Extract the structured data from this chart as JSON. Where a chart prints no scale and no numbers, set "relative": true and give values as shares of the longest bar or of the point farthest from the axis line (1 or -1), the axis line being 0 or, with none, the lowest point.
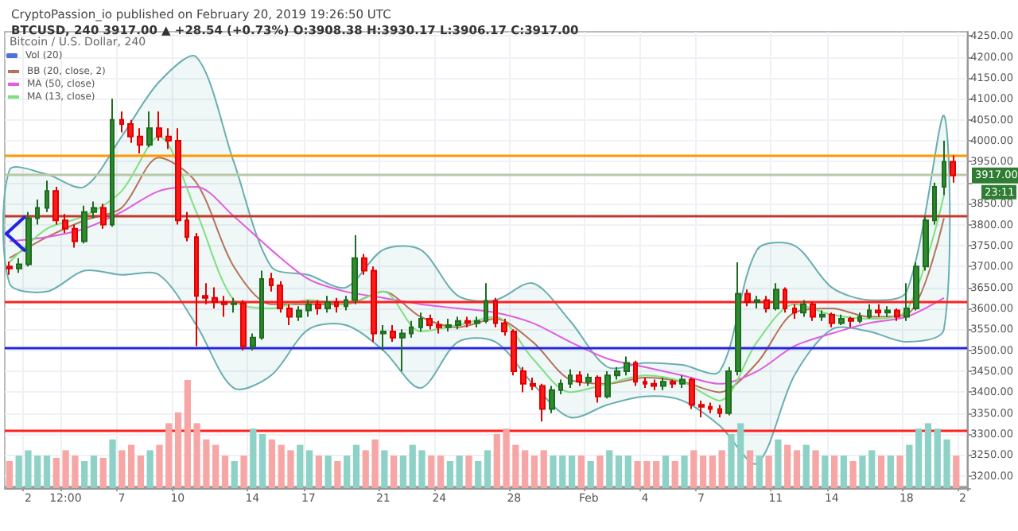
{
  "chart_data": [
    {
      "type": "candlestick",
      "title": "CryptoPassion_io published on February 20, 2019 19:26:50 UTC",
      "subtitle": "BTCUSD, 240 3917.00 ▲ +28.54 (+0.73%) O:3908.38 H:3930.17 L:3906.17 C:3917.00",
      "annotations": [
        "Bitcoin / U.S. Dollar, 240",
        {
          "text": "3917.00",
          "y": 3917
        },
        "23:11"
      ],
      "categories": [
        null,
        null,
        "2",
        null,
        null,
        null,
        "12:00",
        null,
        null,
        null,
        null,
        null,
        "7",
        null,
        null,
        null,
        null,
        null,
        "10",
        null,
        null,
        null,
        null,
        null,
        null,
        null,
        "14",
        null,
        null,
        null,
        null,
        null,
        "17",
        null,
        null,
        null,
        null,
        null,
        null,
        null,
        "21",
        null,
        null,
        null,
        null,
        null,
        "24",
        null,
        null,
        null,
        null,
        null,
        null,
        null,
        "28",
        null,
        null,
        null,
        null,
        null,
        null,
        null,
        "Feb",
        null,
        null,
        null,
        null,
        null,
        "4",
        null,
        null,
        null,
        null,
        null,
        "7",
        null,
        null,
        null,
        null,
        null,
        null,
        null,
        "11",
        null,
        null,
        null,
        null,
        null,
        "14",
        null,
        null,
        null,
        null,
        null,
        null,
        null,
        "18",
        null,
        null,
        null,
        null,
        null,
        "2"
      ],
      "ohlc": [
        [
          3700,
          3712,
          3680,
          3695
        ],
        [
          3695,
          3720,
          3685,
          3705
        ],
        [
          3705,
          3830,
          3700,
          3815
        ],
        [
          3815,
          3860,
          3800,
          3840
        ],
        [
          3840,
          3905,
          3830,
          3880
        ],
        [
          3880,
          3890,
          3800,
          3810
        ],
        [
          3810,
          3825,
          3780,
          3790
        ],
        [
          3790,
          3800,
          3745,
          3760
        ],
        [
          3760,
          3845,
          3755,
          3830
        ],
        [
          3830,
          3855,
          3815,
          3840
        ],
        [
          3840,
          3850,
          3790,
          3800
        ],
        [
          3800,
          4100,
          3795,
          4050
        ],
        [
          4050,
          4070,
          4020,
          4040
        ],
        [
          4040,
          4050,
          3995,
          4010
        ],
        [
          4010,
          4030,
          3970,
          3990
        ],
        [
          3990,
          4070,
          3985,
          4030
        ],
        [
          4030,
          4070,
          4000,
          4010
        ],
        [
          4010,
          4030,
          3980,
          4000
        ],
        [
          4000,
          4030,
          3800,
          3810
        ],
        [
          3810,
          3830,
          3760,
          3770
        ],
        [
          3770,
          3780,
          3510,
          3630
        ],
        [
          3630,
          3660,
          3610,
          3625
        ],
        [
          3625,
          3650,
          3600,
          3615
        ],
        [
          3615,
          3630,
          3580,
          3610
        ],
        [
          3610,
          3625,
          3590,
          3612
        ],
        [
          3612,
          3620,
          3500,
          3510
        ],
        [
          3510,
          3540,
          3500,
          3530
        ],
        [
          3530,
          3690,
          3525,
          3670
        ],
        [
          3670,
          3685,
          3640,
          3655
        ],
        [
          3655,
          3665,
          3590,
          3600
        ],
        [
          3600,
          3610,
          3560,
          3580
        ],
        [
          3580,
          3605,
          3570,
          3595
        ],
        [
          3595,
          3620,
          3580,
          3610
        ],
        [
          3610,
          3620,
          3585,
          3600
        ],
        [
          3600,
          3630,
          3590,
          3615
        ],
        [
          3615,
          3625,
          3590,
          3605
        ],
        [
          3605,
          3630,
          3595,
          3620
        ],
        [
          3620,
          3775,
          3610,
          3720
        ],
        [
          3720,
          3730,
          3680,
          3690
        ],
        [
          3690,
          3700,
          3520,
          3540
        ],
        [
          3540,
          3560,
          3500,
          3545
        ],
        [
          3545,
          3560,
          3520,
          3530
        ],
        [
          3530,
          3550,
          3450,
          3540
        ],
        [
          3540,
          3570,
          3530,
          3555
        ],
        [
          3555,
          3590,
          3545,
          3575
        ],
        [
          3575,
          3585,
          3550,
          3560
        ],
        [
          3560,
          3570,
          3540,
          3555
        ],
        [
          3555,
          3575,
          3545,
          3560
        ],
        [
          3560,
          3580,
          3550,
          3570
        ],
        [
          3570,
          3580,
          3555,
          3565
        ],
        [
          3565,
          3580,
          3555,
          3570
        ],
        [
          3570,
          3660,
          3565,
          3618
        ],
        [
          3618,
          3625,
          3555,
          3565
        ],
        [
          3565,
          3575,
          3535,
          3545
        ],
        [
          3545,
          3550,
          3440,
          3450
        ],
        [
          3450,
          3460,
          3400,
          3420
        ],
        [
          3420,
          3435,
          3405,
          3415
        ],
        [
          3415,
          3420,
          3330,
          3360
        ],
        [
          3360,
          3415,
          3350,
          3405
        ],
        [
          3405,
          3430,
          3395,
          3420
        ],
        [
          3420,
          3455,
          3410,
          3440
        ],
        [
          3440,
          3450,
          3415,
          3425
        ],
        [
          3425,
          3445,
          3415,
          3435
        ],
        [
          3435,
          3440,
          3375,
          3390
        ],
        [
          3390,
          3450,
          3385,
          3440
        ],
        [
          3440,
          3460,
          3430,
          3450
        ],
        [
          3450,
          3485,
          3440,
          3470
        ],
        [
          3470,
          3475,
          3415,
          3425
        ],
        [
          3425,
          3435,
          3410,
          3420
        ],
        [
          3420,
          3430,
          3405,
          3415
        ],
        [
          3415,
          3435,
          3405,
          3425
        ],
        [
          3425,
          3430,
          3410,
          3420
        ],
        [
          3420,
          3440,
          3410,
          3430
        ],
        [
          3430,
          3435,
          3360,
          3370
        ],
        [
          3370,
          3380,
          3340,
          3365
        ],
        [
          3365,
          3375,
          3350,
          3360
        ],
        [
          3360,
          3370,
          3340,
          3350
        ],
        [
          3350,
          3460,
          3345,
          3450
        ],
        [
          3450,
          3710,
          3440,
          3635
        ],
        [
          3635,
          3645,
          3605,
          3615
        ],
        [
          3615,
          3630,
          3600,
          3620
        ],
        [
          3620,
          3630,
          3590,
          3600
        ],
        [
          3600,
          3660,
          3595,
          3645
        ],
        [
          3645,
          3650,
          3590,
          3600
        ],
        [
          3600,
          3610,
          3575,
          3590
        ],
        [
          3590,
          3620,
          3580,
          3610
        ],
        [
          3610,
          3615,
          3570,
          3580
        ],
        [
          3580,
          3595,
          3570,
          3585
        ],
        [
          3585,
          3590,
          3555,
          3565
        ],
        [
          3565,
          3585,
          3560,
          3575
        ],
        [
          3575,
          3580,
          3555,
          3570
        ],
        [
          3570,
          3590,
          3565,
          3580
        ],
        [
          3580,
          3610,
          3575,
          3595
        ],
        [
          3595,
          3610,
          3580,
          3590
        ],
        [
          3590,
          3605,
          3580,
          3595
        ],
        [
          3595,
          3600,
          3570,
          3580
        ],
        [
          3580,
          3660,
          3570,
          3600
        ],
        [
          3600,
          3710,
          3595,
          3700
        ],
        [
          3700,
          3820,
          3690,
          3810
        ],
        [
          3810,
          3900,
          3800,
          3890
        ],
        [
          3890,
          4000,
          3870,
          3950
        ],
        [
          3950,
          3965,
          3900,
          3917
        ],
        null
      ],
      "series": [
        {
          "name": "BB (20, close, 2)",
          "type": "line",
          "color": "#b5735a",
          "values": [
            3720,
            null,
            null,
            null,
            3770,
            null,
            null,
            null,
            3810,
            null,
            null,
            null,
            3840,
            null,
            null,
            null,
            3960,
            null,
            null,
            null,
            3900,
            null,
            null,
            null,
            3700,
            null,
            null,
            null,
            3610,
            null,
            null,
            null,
            3610,
            null,
            null,
            null,
            3610,
            null,
            null,
            null,
            3640,
            null,
            null,
            null,
            3580,
            null,
            null,
            null,
            3555,
            null,
            null,
            null,
            3575,
            null,
            null,
            null,
            3520,
            null,
            null,
            null,
            3430,
            null,
            null,
            null,
            3420,
            null,
            null,
            null,
            3435,
            null,
            null,
            null,
            3425,
            null,
            null,
            null,
            3400,
            null,
            null,
            null,
            3470,
            null,
            null,
            null,
            3590,
            null,
            null,
            null,
            3600,
            null,
            null,
            null,
            3580,
            null,
            null,
            null,
            3585,
            null,
            null,
            null,
            3815,
            null,
            null
          ],
          "lower": [
            3660,
            null,
            null,
            null,
            3640,
            null,
            null,
            null,
            3690,
            null,
            null,
            null,
            3680,
            null,
            null,
            null,
            3680,
            null,
            null,
            null,
            3560,
            null,
            null,
            null,
            3410,
            null,
            null,
            null,
            3440,
            null,
            null,
            null,
            3550,
            null,
            null,
            null,
            3560,
            null,
            null,
            null,
            3500,
            null,
            null,
            null,
            3410,
            null,
            null,
            null,
            3520,
            null,
            null,
            null,
            3520,
            null,
            null,
            null,
            3420,
            null,
            null,
            null,
            3340,
            null,
            null,
            null,
            3370,
            null,
            null,
            null,
            3390,
            null,
            null,
            null,
            3380,
            null,
            null,
            null,
            3320,
            null,
            null,
            null,
            3230,
            null,
            null,
            null,
            3440,
            null,
            null,
            null,
            3550,
            null,
            null,
            null,
            3545,
            null,
            null,
            null,
            3520,
            null,
            null,
            null,
            3550,
            null,
            null
          ],
          "upper": [
            3930,
            null,
            null,
            null,
            3920,
            null,
            null,
            null,
            3890,
            null,
            null,
            null,
            4010,
            null,
            null,
            null,
            4140,
            null,
            null,
            null,
            4200,
            null,
            null,
            null,
            3950,
            null,
            null,
            null,
            3700,
            null,
            null,
            null,
            3680,
            null,
            null,
            null,
            3650,
            null,
            null,
            null,
            3740,
            null,
            null,
            null,
            3740,
            null,
            null,
            null,
            3630,
            null,
            null,
            null,
            3620,
            null,
            null,
            null,
            3660,
            null,
            null,
            null,
            3570,
            null,
            null,
            null,
            3460,
            null,
            null,
            null,
            3470,
            null,
            null,
            null,
            3465,
            null,
            null,
            null,
            3450,
            null,
            null,
            null,
            3740,
            null,
            null,
            null,
            3750,
            null,
            null,
            null,
            3650,
            null,
            null,
            null,
            3620,
            null,
            null,
            null,
            3640,
            null,
            null,
            null,
            4060,
            null,
            null
          ]
        },
        {
          "name": "MA (50, close)",
          "type": "line",
          "color": "#e05ce0",
          "values": [
            3760,
            null,
            null,
            null,
            3770,
            null,
            null,
            null,
            3790,
            null,
            null,
            null,
            3830,
            null,
            null,
            null,
            3880,
            null,
            null,
            null,
            3890,
            null,
            null,
            null,
            3820,
            null,
            null,
            null,
            3740,
            null,
            null,
            null,
            3670,
            null,
            null,
            null,
            3640,
            null,
            null,
            null,
            3625,
            null,
            null,
            null,
            3610,
            null,
            null,
            null,
            3600,
            null,
            null,
            null,
            3590,
            null,
            null,
            null,
            3565,
            null,
            null,
            null,
            3520,
            null,
            null,
            null,
            3480,
            null,
            null,
            null,
            3460,
            null,
            null,
            null,
            3440,
            null,
            null,
            null,
            3420,
            null,
            null,
            null,
            3450,
            null,
            null,
            null,
            3510,
            null,
            null,
            null,
            3540,
            null,
            null,
            null,
            3565,
            null,
            null,
            null,
            3580,
            null,
            null,
            null,
            3625,
            null,
            null
          ]
        },
        {
          "name": "MA (13, close)",
          "type": "line",
          "color": "#7ee07e",
          "values": [
            3710,
            null,
            null,
            null,
            3790,
            null,
            null,
            null,
            3820,
            null,
            null,
            null,
            3880,
            null,
            null,
            null,
            4010,
            null,
            null,
            null,
            3830,
            null,
            null,
            null,
            3620,
            null,
            null,
            null,
            3600,
            null,
            null,
            null,
            3620,
            null,
            null,
            null,
            3610,
            null,
            null,
            null,
            3640,
            null,
            null,
            null,
            3545,
            null,
            null,
            null,
            3560,
            null,
            null,
            null,
            3580,
            null,
            null,
            null,
            3480,
            null,
            null,
            null,
            3400,
            null,
            null,
            null,
            3420,
            null,
            null,
            null,
            3440,
            null,
            null,
            null,
            3425,
            null,
            null,
            null,
            3380,
            null,
            null,
            null,
            3520,
            null,
            null,
            null,
            3610,
            null,
            null,
            null,
            3585,
            null,
            null,
            null,
            3575,
            null,
            null,
            null,
            3595,
            null,
            null,
            null,
            3870,
            null,
            null
          ]
        }
      ],
      "ylim": [
        3175,
        4260
      ],
      "yticks": [
        {
          "value": 3200,
          "label": "3200.00"
        },
        {
          "value": 3250,
          "label": "3250.00"
        },
        {
          "value": 3300,
          "label": "3300.00"
        },
        {
          "value": 3350,
          "label": "3350.00"
        },
        {
          "value": 3400,
          "label": "3400.00"
        },
        {
          "value": 3450,
          "label": "3450.00"
        },
        {
          "value": 3500,
          "label": "3500.00"
        },
        {
          "value": 3550,
          "label": "3550.00"
        },
        {
          "value": 3600,
          "label": "3600.00"
        },
        {
          "value": 3650,
          "label": "3650.00"
        },
        {
          "value": 3700,
          "label": "3700.00"
        },
        {
          "value": 3750,
          "label": "3750.00"
        },
        {
          "value": 3800,
          "label": "3800.00"
        },
        {
          "value": 3850,
          "label": "3850.00"
        },
        {
          "value": 3900,
          "label": null
        },
        {
          "value": 3950,
          "label": "3950.00"
        },
        {
          "value": 4000,
          "label": "4000.00"
        },
        {
          "value": 4050,
          "label": "4050.00"
        },
        {
          "value": 4100,
          "label": "4100.00"
        },
        {
          "value": 4150,
          "label": "4150.00"
        },
        {
          "value": 4200,
          "label": "4200.00"
        },
        {
          "value": 4250,
          "label": "4250.00"
        }
      ],
      "ref_lines": [
        {
          "axis": "y",
          "value": 3966,
          "color": "#ff9800"
        },
        {
          "axis": "y",
          "value": 3918,
          "color": "#b8c8a8"
        },
        {
          "axis": "y",
          "value": 3819,
          "color": "#c0392b"
        },
        {
          "axis": "y",
          "value": 3616,
          "color": "#ff2020"
        },
        {
          "axis": "y",
          "value": 3505,
          "color": "#2424e0"
        },
        {
          "axis": "y",
          "value": 3308,
          "color": "#ff2020"
        }
      ],
      "grid": true,
      "legend": "top left"
    },
    {
      "type": "bar",
      "relative": true,
      "legend": "top left",
      "categories": [
        null,
        null,
        null,
        null,
        null,
        null,
        null,
        null,
        null,
        null,
        null,
        null,
        null,
        null,
        null,
        null,
        null,
        null,
        null,
        null,
        null,
        null,
        null,
        null,
        null,
        null,
        null,
        null,
        null,
        null,
        null,
        null,
        null,
        null,
        null,
        null,
        null,
        null,
        null,
        null,
        null,
        null,
        null,
        null,
        null,
        null,
        null,
        null,
        null,
        null,
        null,
        null,
        null,
        null,
        null,
        null,
        null,
        null,
        null,
        null,
        null,
        null,
        null,
        null,
        null,
        null,
        null,
        null,
        null,
        null,
        null,
        null,
        null,
        null,
        null,
        null,
        null,
        null,
        null,
        null,
        null,
        null,
        null,
        null,
        null,
        null,
        null,
        null,
        null,
        null,
        null,
        null,
        null,
        null,
        null,
        null,
        null,
        null,
        null,
        null,
        null,
        null,
        null
      ],
      "series": [
        {
          "name": "Vol (20)",
          "values": [
            0.25,
            0.3,
            0.35,
            0.3,
            0.3,
            0.28,
            0.35,
            0.3,
            0.25,
            0.3,
            0.28,
            0.45,
            0.35,
            0.4,
            0.3,
            0.35,
            0.4,
            0.6,
            0.7,
            1.0,
            0.6,
            0.45,
            0.4,
            0.3,
            0.25,
            0.3,
            0.55,
            0.5,
            0.45,
            0.4,
            0.35,
            0.4,
            0.35,
            0.3,
            0.3,
            0.25,
            0.3,
            0.4,
            0.35,
            0.45,
            0.35,
            0.3,
            0.3,
            0.4,
            0.35,
            0.3,
            0.3,
            0.25,
            0.3,
            0.3,
            0.25,
            0.35,
            0.5,
            0.55,
            0.4,
            0.35,
            0.3,
            0.35,
            0.3,
            0.3,
            0.3,
            0.3,
            0.25,
            0.3,
            0.35,
            0.3,
            0.3,
            0.25,
            0.25,
            0.25,
            0.3,
            0.25,
            0.3,
            0.35,
            0.3,
            0.3,
            0.35,
            0.5,
            0.6,
            0.35,
            0.3,
            0.3,
            0.45,
            0.4,
            0.35,
            0.4,
            0.35,
            0.3,
            0.3,
            0.3,
            0.25,
            0.3,
            0.35,
            0.3,
            0.3,
            0.3,
            0.4,
            0.55,
            0.6,
            0.55,
            0.45,
            0.3,
            null
          ],
          "colors": [
            "#f6a6a4",
            "#8ed1c6",
            "#8ed1c6",
            "#8ed1c6",
            "#8ed1c6",
            "#f6a6a4",
            "#f6a6a4",
            "#f6a6a4",
            "#8ed1c6",
            "#8ed1c6",
            "#f6a6a4",
            "#8ed1c6",
            "#f6a6a4",
            "#f6a6a4",
            "#f6a6a4",
            "#8ed1c6",
            "#f6a6a4",
            "#f6a6a4",
            "#f6a6a4",
            "#f6a6a4",
            "#f6a6a4",
            "#f6a6a4",
            "#f6a6a4",
            "#f6a6a4",
            "#8ed1c6",
            "#f6a6a4",
            "#8ed1c6",
            "#8ed1c6",
            "#f6a6a4",
            "#f6a6a4",
            "#f6a6a4",
            "#8ed1c6",
            "#8ed1c6",
            "#f6a6a4",
            "#8ed1c6",
            "#f6a6a4",
            "#8ed1c6",
            "#8ed1c6",
            "#f6a6a4",
            "#f6a6a4",
            "#8ed1c6",
            "#f6a6a4",
            "#8ed1c6",
            "#8ed1c6",
            "#8ed1c6",
            "#f6a6a4",
            "#f6a6a4",
            "#8ed1c6",
            "#8ed1c6",
            "#f6a6a4",
            "#8ed1c6",
            "#8ed1c6",
            "#f6a6a4",
            "#f6a6a4",
            "#f6a6a4",
            "#f6a6a4",
            "#f6a6a4",
            "#f6a6a4",
            "#8ed1c6",
            "#8ed1c6",
            "#8ed1c6",
            "#f6a6a4",
            "#8ed1c6",
            "#f6a6a4",
            "#8ed1c6",
            "#8ed1c6",
            "#8ed1c6",
            "#f6a6a4",
            "#f6a6a4",
            "#f6a6a4",
            "#8ed1c6",
            "#f6a6a4",
            "#8ed1c6",
            "#f6a6a4",
            "#f6a6a4",
            "#f6a6a4",
            "#f6a6a4",
            "#8ed1c6",
            "#8ed1c6",
            "#f6a6a4",
            "#8ed1c6",
            "#f6a6a4",
            "#8ed1c6",
            "#f6a6a4",
            "#f6a6a4",
            "#8ed1c6",
            "#f6a6a4",
            "#8ed1c6",
            "#f6a6a4",
            "#8ed1c6",
            "#f6a6a4",
            "#8ed1c6",
            "#8ed1c6",
            "#f6a6a4",
            "#8ed1c6",
            "#f6a6a4",
            "#8ed1c6",
            "#8ed1c6",
            "#8ed1c6",
            "#8ed1c6",
            "#8ed1c6",
            "#f6a6a4",
            null
          ]
        }
      ]
    }
  ]
}
